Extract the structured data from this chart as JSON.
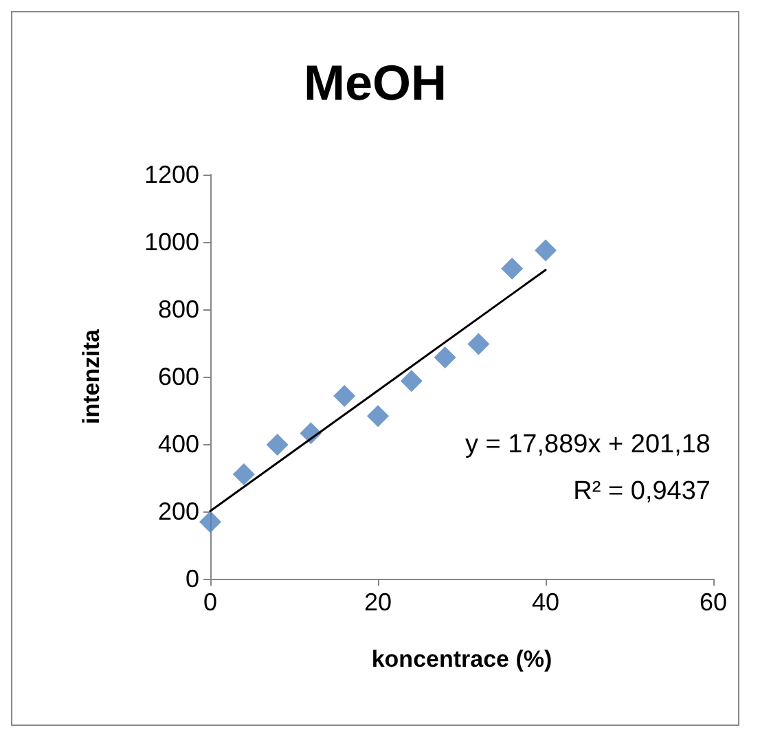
{
  "chart_data": {
    "type": "scatter",
    "title": "MeOH",
    "xlabel": "koncentrace (%)",
    "ylabel": "intenzita",
    "series": [
      {
        "color": "#4f81bd",
        "x": [
          0,
          4,
          8,
          12,
          16,
          20,
          24,
          28,
          32,
          36,
          40
        ],
        "values": [
          169,
          310,
          398,
          432,
          543,
          483,
          587,
          657,
          697,
          921,
          975
        ],
        "marker": "diamond"
      },
      {
        "type": "line",
        "color": "#000000",
        "x": [
          0,
          40
        ],
        "values": [
          201,
          917
        ],
        "marker": "none"
      }
    ],
    "annotations": [
      "y = 17,889x + 201,18",
      "R² = 0,9437"
    ],
    "xlim": [
      0,
      60
    ],
    "xticks": [
      0,
      20,
      40,
      60
    ],
    "ylim": [
      0,
      1200
    ],
    "yticks": [
      0,
      200,
      400,
      600,
      800,
      1000,
      1200
    ],
    "grid": false
  }
}
